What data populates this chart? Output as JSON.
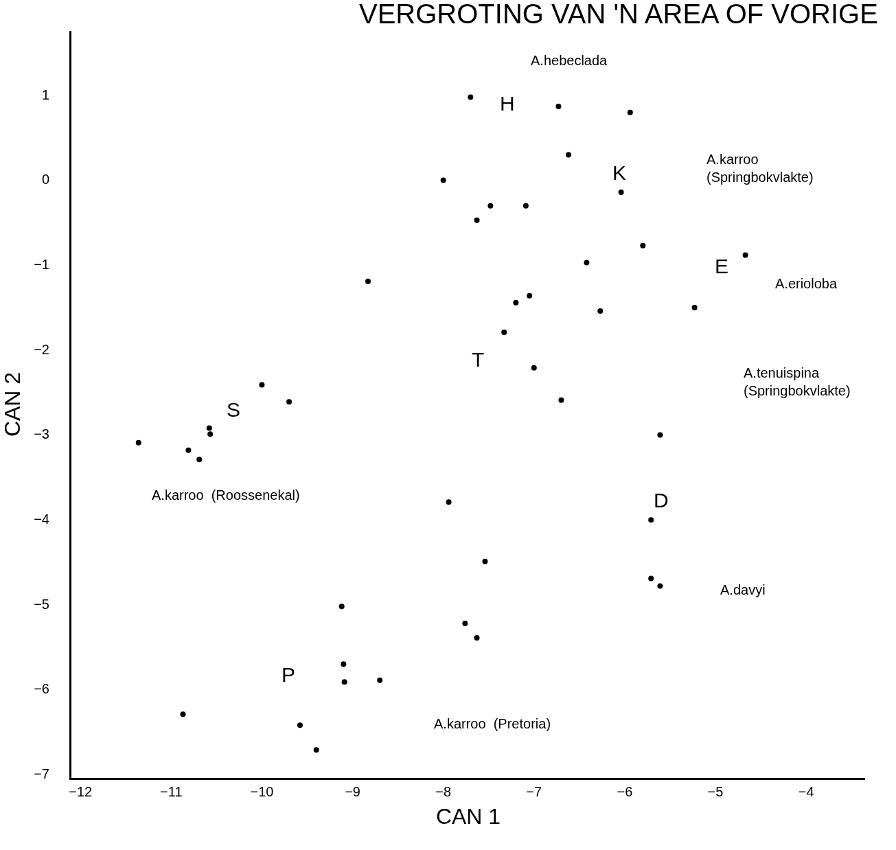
{
  "chart_data": {
    "type": "scatter",
    "title": "VERGROTING VAN 'N AREA OF VORIGE",
    "xlabel": "CAN 1",
    "ylabel": "CAN 2",
    "marker": "circle",
    "legend": false,
    "xlim": [
      -12.1,
      -3.35
    ],
    "ylim": [
      -7.05,
      1.75
    ],
    "xticks": [
      -12,
      -11,
      -10,
      -9,
      -8,
      -7,
      -6,
      -5,
      -4
    ],
    "yticks": [
      -7,
      -6,
      -5,
      -4,
      -3,
      -2,
      -1,
      0,
      1
    ],
    "series": [
      {
        "name": "H",
        "color": "#000000",
        "x": [
          -7.7,
          -6.73
        ],
        "values": [
          0.97,
          0.86
        ]
      },
      {
        "name": "K",
        "color": "#000000",
        "x": [
          -5.94,
          -6.62,
          -6.04,
          -5.8,
          -6.42
        ],
        "values": [
          0.79,
          0.29,
          -0.15,
          -0.78,
          -0.98
        ]
      },
      {
        "name": "E",
        "color": "#000000",
        "x": [
          -7.48,
          -7.09,
          -4.67,
          -7.05
        ],
        "values": [
          -0.31,
          -0.31,
          -0.89,
          -1.37
        ]
      },
      {
        "name": "T",
        "color": "#000000",
        "x": [
          -8.0,
          -7.63,
          -8.83,
          -7.2,
          -6.27,
          -5.23,
          -7.33,
          -7.0,
          -6.7,
          -7.94
        ],
        "values": [
          -0.01,
          -0.48,
          -1.2,
          -1.45,
          -1.55,
          -1.51,
          -1.8,
          -2.22,
          -2.6,
          -3.8
        ]
      },
      {
        "name": "S",
        "color": "#000000",
        "x": [
          -10.0,
          -9.7,
          -10.58,
          -10.57,
          -11.36,
          -10.81,
          -10.69
        ],
        "values": [
          -2.42,
          -2.62,
          -2.93,
          -3.0,
          -3.1,
          -3.19,
          -3.3
        ]
      },
      {
        "name": "D",
        "color": "#000000",
        "x": [
          -5.61,
          -5.71,
          -5.71,
          -5.61
        ],
        "values": [
          -3.01,
          -4.01,
          -4.7,
          -4.79
        ]
      },
      {
        "name": "P",
        "color": "#000000",
        "x": [
          -7.54,
          -9.12,
          -7.76,
          -7.63,
          -9.1,
          -9.09,
          -8.7,
          -10.87,
          -9.58,
          -9.4
        ],
        "values": [
          -4.5,
          -5.03,
          -5.23,
          -5.4,
          -5.71,
          -5.92,
          -5.9,
          -6.3,
          -6.43,
          -6.72
        ]
      }
    ],
    "annotations": [
      "A.hebeclada",
      "A.karroo\n(Springbokvlakte)",
      "A.erioloba",
      "A.tenuispina\n(Springbokvlakte)",
      "A.karroo  (Roossenekal)",
      "A.davyi",
      "A.karroo  (Pretoria)"
    ]
  }
}
